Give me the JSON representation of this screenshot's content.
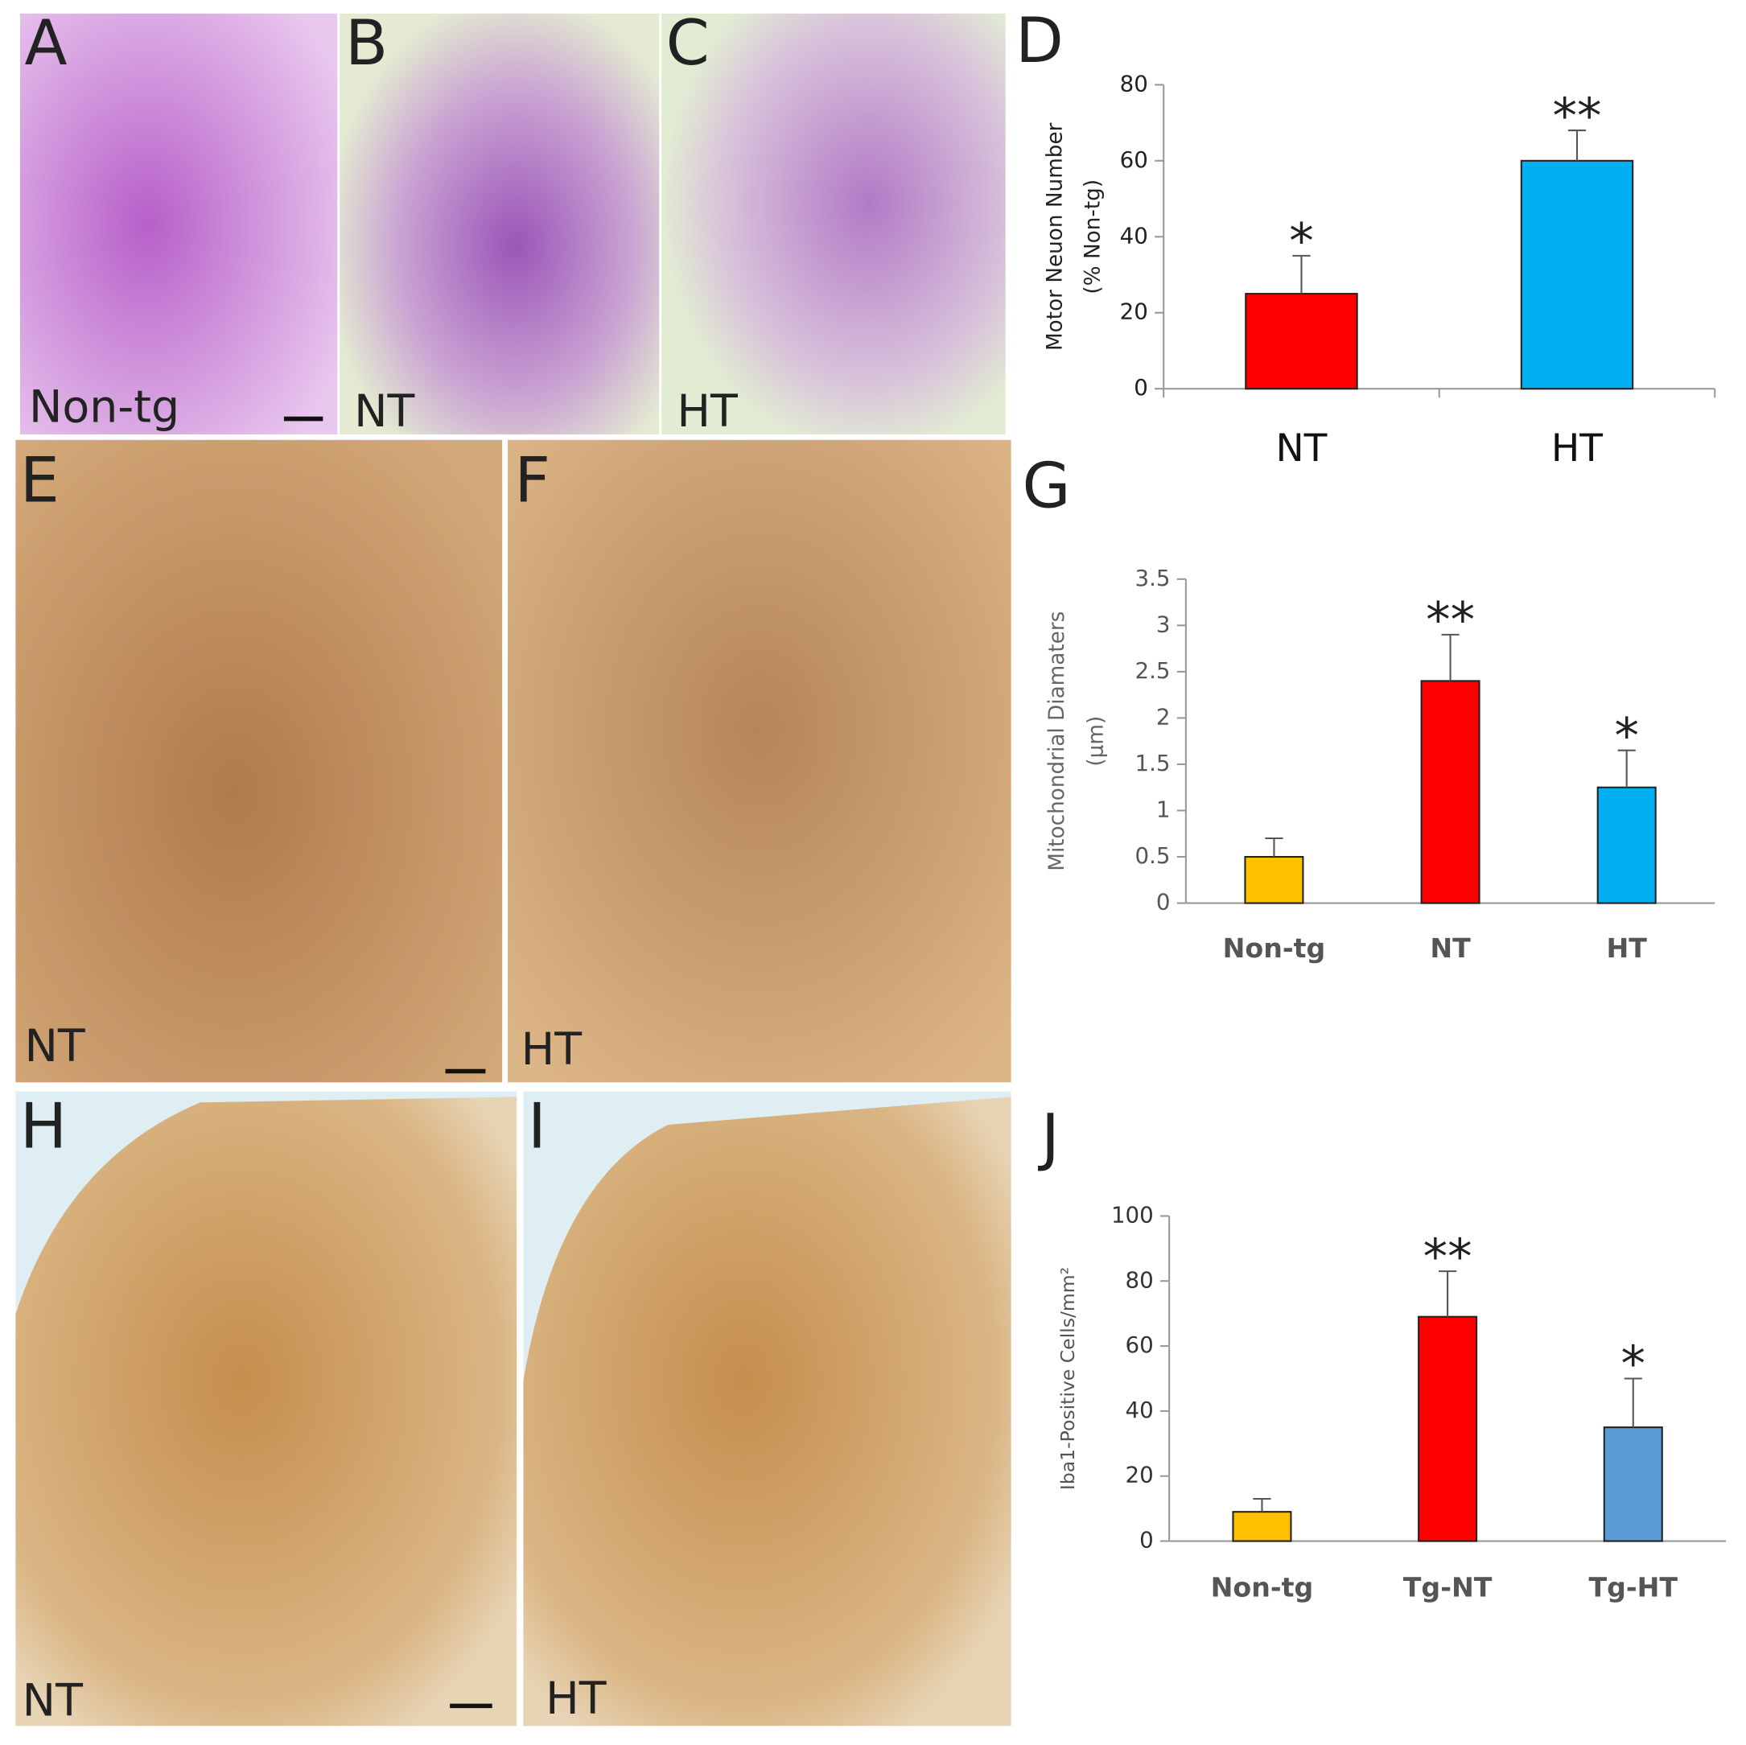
{
  "panels": [
    {
      "letter": "A",
      "label": "Non-tg"
    },
    {
      "letter": "B",
      "label": "NT"
    },
    {
      "letter": "C",
      "label": "HT"
    },
    {
      "letter": "E",
      "label": "NT"
    },
    {
      "letter": "F",
      "label": "HT"
    },
    {
      "letter": "H",
      "label": "NT"
    },
    {
      "letter": "I",
      "label": "HT"
    }
  ],
  "chart_data": [
    {
      "type": "bar",
      "panel": "D",
      "ylabel": [
        "Motor Neuon Number",
        "(% Non-tg)"
      ],
      "categories": [
        "NT",
        "HT"
      ],
      "values": [
        25,
        60
      ],
      "errors": [
        10,
        8
      ],
      "colors": [
        "#ff0000",
        "#00b0f0"
      ],
      "annotations": [
        "*",
        "**"
      ],
      "ylim": [
        0,
        80
      ],
      "yticks": [
        0,
        20,
        40,
        60,
        80
      ]
    },
    {
      "type": "bar",
      "panel": "G",
      "ylabel": [
        "Mitochondrial Diamaters",
        "(µm)"
      ],
      "categories": [
        "Non-tg",
        "NT",
        "HT"
      ],
      "values": [
        0.5,
        2.4,
        1.25
      ],
      "errors": [
        0.2,
        0.5,
        0.4
      ],
      "colors": [
        "#ffc000",
        "#ff0000",
        "#00b0f0"
      ],
      "annotations": [
        null,
        "**",
        "*"
      ],
      "ylim": [
        0,
        3.5
      ],
      "yticks": [
        0,
        0.5,
        1,
        1.5,
        2,
        2.5,
        3,
        3.5
      ]
    },
    {
      "type": "bar",
      "panel": "J",
      "ylabel": [
        "Iba1-Positive Cells/mm²"
      ],
      "categories": [
        "Non-tg",
        "Tg-NT",
        "Tg-HT"
      ],
      "values": [
        9,
        69,
        35
      ],
      "errors": [
        4,
        14,
        15
      ],
      "colors": [
        "#ffc000",
        "#ff0000",
        "#5b9bd5"
      ],
      "annotations": [
        null,
        "**",
        "*"
      ],
      "ylim": [
        0,
        100
      ],
      "yticks": [
        0,
        20,
        40,
        60,
        80,
        100
      ]
    }
  ]
}
